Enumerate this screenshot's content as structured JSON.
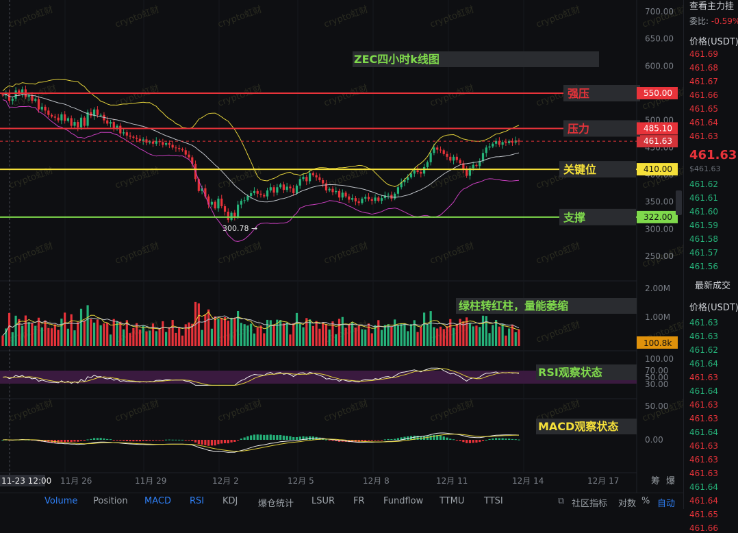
{
  "chart_data": {
    "type": "candlestick",
    "title": "ZEC四小时k线图",
    "price_axis_ticks": [
      "700.00",
      "650.00",
      "600.00",
      "550.00",
      "500.00",
      "450.00",
      "400.00",
      "350.00",
      "300.00",
      "250.00"
    ],
    "volume_axis_ticks": [
      "2.00M",
      "1.00M"
    ],
    "rsi_axis_ticks": [
      "100.00",
      "70.00",
      "50.00",
      "30.00"
    ],
    "macd_axis_ticks": [
      "50.00",
      "0.00"
    ],
    "date_ticks": [
      "11-23 12:00",
      "11月 26",
      "11月 29",
      "12月 2",
      "12月 5",
      "12月 8",
      "12月 11",
      "12月 14",
      "12月 17"
    ],
    "horizontal_levels": [
      {
        "label": "强压",
        "price": 550.0,
        "price_label": "550.00",
        "color": "#e8333a"
      },
      {
        "label": "压力",
        "price": 485.1,
        "price_label": "485.10",
        "color": "#e8333a"
      },
      {
        "label": "关键位",
        "price": 410.0,
        "price_label": "410.00",
        "color": "#f5e03a"
      },
      {
        "label": "支撑",
        "price": 322.0,
        "price_label": "322.00",
        "color": "#7fd94c"
      }
    ],
    "current_price_label": "461.63",
    "low_marker": "300.78",
    "volume_label": "100.8k",
    "volume_annotation": "绿柱转红柱，量能萎缩",
    "rsi_annotation": "RSI观察状态",
    "macd_annotation": "MACD观察状态",
    "watermark": "crypto虹财",
    "closes": [
      546,
      550,
      536,
      540,
      555,
      548,
      557,
      543,
      546,
      536,
      539,
      520,
      525,
      518,
      510,
      507,
      505,
      500,
      511,
      499,
      504,
      490,
      497,
      487,
      505,
      490,
      515,
      508,
      520,
      510,
      510,
      500,
      494,
      497,
      484,
      490,
      476,
      478,
      472,
      470,
      468,
      466,
      462,
      465,
      459,
      461,
      457,
      462,
      460,
      455,
      458,
      455,
      450,
      449,
      447,
      445,
      437,
      432,
      420,
      392,
      370,
      375,
      360,
      345,
      350,
      338,
      356,
      342,
      332,
      317,
      330,
      322,
      345,
      352,
      353,
      361,
      366,
      370,
      365,
      363,
      360,
      371,
      377,
      367,
      377,
      382,
      372,
      378,
      375,
      366,
      380,
      392,
      396,
      388,
      403,
      399,
      395,
      390,
      384,
      371,
      374,
      368,
      370,
      358,
      367,
      360,
      354,
      357,
      351,
      348,
      356,
      359,
      355,
      352,
      358,
      352,
      357,
      362,
      363,
      356,
      365,
      377,
      386,
      390,
      395,
      402,
      408,
      405,
      402,
      414,
      423,
      440,
      450,
      446,
      445,
      438,
      433,
      426,
      433,
      427,
      421,
      409,
      398,
      412,
      418,
      416,
      425,
      440,
      450,
      452,
      457,
      462,
      455,
      460,
      458,
      462,
      459,
      463,
      461
    ],
    "sidebar": {
      "top_label": "查看主力挂",
      "weibi_label": "委比:",
      "weibi_value": "-0.59%",
      "price_header": "价格(USDT)",
      "asks": [
        "461.69",
        "461.68",
        "461.67",
        "461.66",
        "461.65",
        "461.64",
        "461.63"
      ],
      "last_price": "461.63",
      "last_price_usd": "$461.63",
      "bids": [
        "461.62",
        "461.61",
        "461.60",
        "461.59",
        "461.58",
        "461.57",
        "461.56"
      ],
      "trades_header": "最新成交",
      "trades_price_header": "价格(USDT)",
      "trades": [
        {
          "p": "461.63",
          "c": "#26b37a"
        },
        {
          "p": "461.63",
          "c": "#26b37a"
        },
        {
          "p": "461.62",
          "c": "#26b37a"
        },
        {
          "p": "461.64",
          "c": "#26b37a"
        },
        {
          "p": "461.63",
          "c": "#e8333a"
        },
        {
          "p": "461.64",
          "c": "#26b37a"
        },
        {
          "p": "461.63",
          "c": "#e8333a"
        },
        {
          "p": "461.63",
          "c": "#e8333a"
        },
        {
          "p": "461.64",
          "c": "#26b37a"
        },
        {
          "p": "461.63",
          "c": "#e8333a"
        },
        {
          "p": "461.63",
          "c": "#e8333a"
        },
        {
          "p": "461.63",
          "c": "#e8333a"
        },
        {
          "p": "461.64",
          "c": "#26b37a"
        },
        {
          "p": "461.64",
          "c": "#e8333a"
        },
        {
          "p": "461.65",
          "c": "#e8333a"
        },
        {
          "p": "461.66",
          "c": "#e8333a"
        }
      ]
    }
  },
  "tabs": {
    "items": [
      "Volume",
      "Position",
      "MACD",
      "RSI",
      "KDJ",
      "爆仓统计",
      "LSUR",
      "FR",
      "Fundflow",
      "TTMU",
      "TTSI"
    ],
    "active": [
      "Volume",
      "MACD",
      "RSI"
    ],
    "right_items": [
      "社区指标",
      "对数",
      "%",
      "自动"
    ],
    "corner_a": "筹",
    "corner_b": "爆"
  },
  "colors": {
    "up": "#26b37a",
    "down": "#e8333a",
    "yellow": "#f5e03a",
    "green": "#7fd94c",
    "bg": "#0e0f12"
  }
}
